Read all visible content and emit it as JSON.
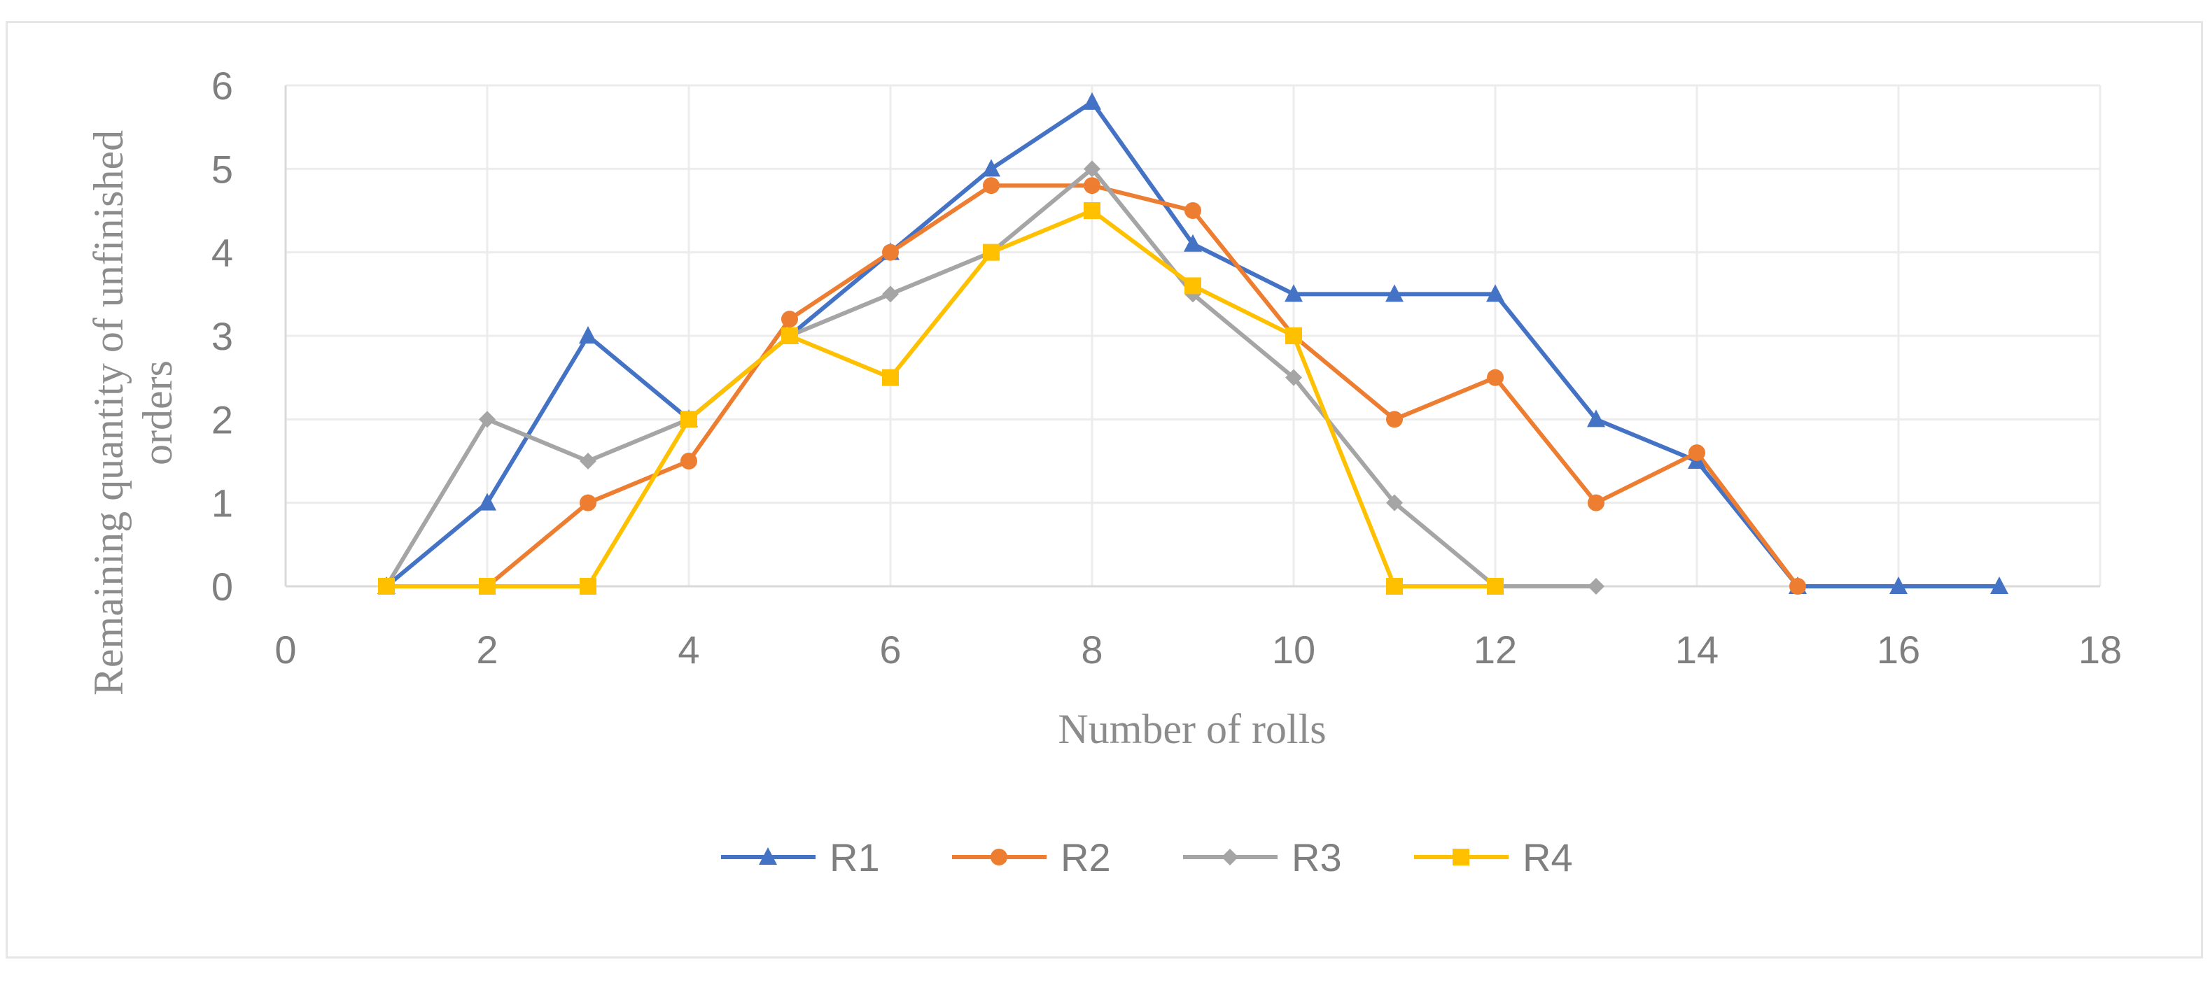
{
  "chart_data": {
    "type": "line",
    "title": "",
    "xlabel": "Number of rolls",
    "ylabel_lines": [
      "Remaining quantity of unfinished",
      "orders"
    ],
    "xlim": [
      0,
      18
    ],
    "ylim": [
      0,
      6
    ],
    "xticks": [
      0,
      2,
      4,
      6,
      8,
      10,
      12,
      14,
      16,
      18
    ],
    "yticks": [
      0,
      1,
      2,
      3,
      4,
      5,
      6
    ],
    "grid": true,
    "legend_position": "bottom",
    "series": [
      {
        "name": "R1",
        "color": "#4472c4",
        "marker": "triangle",
        "x": [
          1,
          2,
          3,
          4,
          5,
          6,
          7,
          8,
          9,
          10,
          11,
          12,
          13,
          14,
          15,
          16,
          17
        ],
        "y": [
          0,
          1,
          3,
          2,
          3,
          4,
          5,
          5.8,
          4.1,
          3.5,
          3.5,
          3.5,
          2,
          1.5,
          0,
          0,
          0
        ]
      },
      {
        "name": "R2",
        "color": "#ed7d31",
        "marker": "circle",
        "x": [
          1,
          2,
          3,
          4,
          5,
          6,
          7,
          8,
          9,
          10,
          11,
          12,
          13,
          14,
          15
        ],
        "y": [
          0,
          0,
          1,
          1.5,
          3.2,
          4,
          4.8,
          4.8,
          4.5,
          3,
          2,
          2.5,
          1,
          1.6,
          0
        ]
      },
      {
        "name": "R3",
        "color": "#a5a5a5",
        "marker": "diamond",
        "x": [
          1,
          2,
          3,
          4,
          5,
          6,
          7,
          8,
          9,
          10,
          11,
          12,
          13
        ],
        "y": [
          0,
          2,
          1.5,
          2,
          3,
          3.5,
          4,
          5,
          3.5,
          2.5,
          1,
          0,
          0
        ]
      },
      {
        "name": "R4",
        "color": "#ffc000",
        "marker": "square",
        "x": [
          1,
          2,
          3,
          4,
          5,
          6,
          7,
          8,
          9,
          10,
          11,
          12
        ],
        "y": [
          0,
          0,
          0,
          2,
          3,
          2.5,
          4,
          4.5,
          3.6,
          3,
          0,
          0
        ]
      }
    ]
  }
}
